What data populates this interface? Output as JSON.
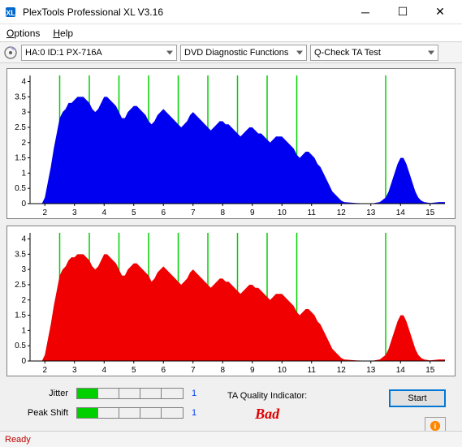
{
  "window": {
    "title": "PlexTools Professional XL V3.16"
  },
  "menu": {
    "options": "Options",
    "help": "Help"
  },
  "toolbar": {
    "drive": "HA:0 ID:1  PX-716A",
    "mode": "DVD Diagnostic Functions",
    "test": "Q-Check TA Test"
  },
  "chart": {
    "xlim": [
      1.5,
      15.5
    ],
    "ylim": [
      0,
      4.2
    ],
    "xticks": [
      2,
      3,
      4,
      5,
      6,
      7,
      8,
      9,
      10,
      11,
      12,
      13,
      14,
      15
    ],
    "yticks": [
      0,
      0.5,
      1,
      1.5,
      2,
      2.5,
      3,
      3.5,
      4
    ],
    "ylabels": [
      "0",
      "0.5",
      "1",
      "1.5",
      "2",
      "2.5",
      "3",
      "3.5",
      "4"
    ],
    "grid_x": [
      2.5,
      3.5,
      4.5,
      5.5,
      6.5,
      7.5,
      8.5,
      9.5,
      10.5,
      13.5
    ],
    "grid_color": "#00d000",
    "bg": "#ffffff",
    "chart1": {
      "color": "#0000f0",
      "data": [
        [
          1.9,
          0
        ],
        [
          2.0,
          0.2
        ],
        [
          2.1,
          0.7
        ],
        [
          2.2,
          1.2
        ],
        [
          2.3,
          1.8
        ],
        [
          2.4,
          2.3
        ],
        [
          2.5,
          2.8
        ],
        [
          2.6,
          3.0
        ],
        [
          2.7,
          3.1
        ],
        [
          2.8,
          3.3
        ],
        [
          2.9,
          3.3
        ],
        [
          3.0,
          3.4
        ],
        [
          3.1,
          3.5
        ],
        [
          3.2,
          3.5
        ],
        [
          3.3,
          3.5
        ],
        [
          3.4,
          3.4
        ],
        [
          3.5,
          3.3
        ],
        [
          3.6,
          3.1
        ],
        [
          3.7,
          3.0
        ],
        [
          3.8,
          3.1
        ],
        [
          3.9,
          3.3
        ],
        [
          4.0,
          3.5
        ],
        [
          4.1,
          3.5
        ],
        [
          4.2,
          3.4
        ],
        [
          4.3,
          3.3
        ],
        [
          4.4,
          3.2
        ],
        [
          4.5,
          3.0
        ],
        [
          4.6,
          2.8
        ],
        [
          4.7,
          2.8
        ],
        [
          4.8,
          3.0
        ],
        [
          4.9,
          3.1
        ],
        [
          5.0,
          3.2
        ],
        [
          5.1,
          3.2
        ],
        [
          5.2,
          3.1
        ],
        [
          5.3,
          3.0
        ],
        [
          5.4,
          2.9
        ],
        [
          5.5,
          2.7
        ],
        [
          5.6,
          2.6
        ],
        [
          5.7,
          2.7
        ],
        [
          5.8,
          2.9
        ],
        [
          5.9,
          3.0
        ],
        [
          6.0,
          3.1
        ],
        [
          6.1,
          3.0
        ],
        [
          6.2,
          2.9
        ],
        [
          6.3,
          2.8
        ],
        [
          6.4,
          2.7
        ],
        [
          6.5,
          2.6
        ],
        [
          6.6,
          2.5
        ],
        [
          6.7,
          2.6
        ],
        [
          6.8,
          2.7
        ],
        [
          6.9,
          2.9
        ],
        [
          7.0,
          3.0
        ],
        [
          7.1,
          2.9
        ],
        [
          7.2,
          2.8
        ],
        [
          7.3,
          2.7
        ],
        [
          7.4,
          2.6
        ],
        [
          7.5,
          2.5
        ],
        [
          7.6,
          2.4
        ],
        [
          7.7,
          2.5
        ],
        [
          7.8,
          2.6
        ],
        [
          7.9,
          2.7
        ],
        [
          8.0,
          2.7
        ],
        [
          8.1,
          2.6
        ],
        [
          8.2,
          2.6
        ],
        [
          8.3,
          2.5
        ],
        [
          8.4,
          2.4
        ],
        [
          8.5,
          2.3
        ],
        [
          8.6,
          2.2
        ],
        [
          8.7,
          2.3
        ],
        [
          8.8,
          2.4
        ],
        [
          8.9,
          2.5
        ],
        [
          9.0,
          2.5
        ],
        [
          9.1,
          2.4
        ],
        [
          9.2,
          2.3
        ],
        [
          9.3,
          2.3
        ],
        [
          9.4,
          2.2
        ],
        [
          9.5,
          2.1
        ],
        [
          9.6,
          2.0
        ],
        [
          9.7,
          2.1
        ],
        [
          9.8,
          2.2
        ],
        [
          9.9,
          2.2
        ],
        [
          10.0,
          2.2
        ],
        [
          10.1,
          2.1
        ],
        [
          10.2,
          2.0
        ],
        [
          10.3,
          1.9
        ],
        [
          10.4,
          1.8
        ],
        [
          10.5,
          1.6
        ],
        [
          10.6,
          1.5
        ],
        [
          10.7,
          1.6
        ],
        [
          10.8,
          1.7
        ],
        [
          10.9,
          1.7
        ],
        [
          11.0,
          1.6
        ],
        [
          11.1,
          1.5
        ],
        [
          11.2,
          1.3
        ],
        [
          11.3,
          1.2
        ],
        [
          11.4,
          1.0
        ],
        [
          11.5,
          0.8
        ],
        [
          11.6,
          0.6
        ],
        [
          11.7,
          0.4
        ],
        [
          11.8,
          0.3
        ],
        [
          11.9,
          0.2
        ],
        [
          12.0,
          0.1
        ],
        [
          12.1,
          0.05
        ],
        [
          12.5,
          0.02
        ],
        [
          13.0,
          0
        ],
        [
          13.3,
          0.05
        ],
        [
          13.5,
          0.2
        ],
        [
          13.6,
          0.4
        ],
        [
          13.7,
          0.7
        ],
        [
          13.8,
          1.0
        ],
        [
          13.9,
          1.3
        ],
        [
          14.0,
          1.5
        ],
        [
          14.1,
          1.5
        ],
        [
          14.2,
          1.3
        ],
        [
          14.3,
          1.0
        ],
        [
          14.4,
          0.7
        ],
        [
          14.5,
          0.4
        ],
        [
          14.6,
          0.2
        ],
        [
          14.7,
          0.1
        ],
        [
          14.8,
          0.05
        ],
        [
          15.0,
          0.02
        ],
        [
          15.3,
          0.05
        ],
        [
          15.5,
          0.05
        ]
      ]
    },
    "chart2": {
      "color": "#f00000",
      "data": [
        [
          1.9,
          0
        ],
        [
          2.0,
          0.2
        ],
        [
          2.1,
          0.7
        ],
        [
          2.2,
          1.2
        ],
        [
          2.3,
          1.8
        ],
        [
          2.4,
          2.3
        ],
        [
          2.5,
          2.8
        ],
        [
          2.6,
          3.0
        ],
        [
          2.7,
          3.1
        ],
        [
          2.8,
          3.3
        ],
        [
          2.9,
          3.4
        ],
        [
          3.0,
          3.4
        ],
        [
          3.1,
          3.5
        ],
        [
          3.2,
          3.5
        ],
        [
          3.3,
          3.5
        ],
        [
          3.4,
          3.4
        ],
        [
          3.5,
          3.3
        ],
        [
          3.6,
          3.1
        ],
        [
          3.7,
          3.0
        ],
        [
          3.8,
          3.1
        ],
        [
          3.9,
          3.3
        ],
        [
          4.0,
          3.5
        ],
        [
          4.1,
          3.5
        ],
        [
          4.2,
          3.4
        ],
        [
          4.3,
          3.3
        ],
        [
          4.4,
          3.2
        ],
        [
          4.5,
          3.0
        ],
        [
          4.6,
          2.8
        ],
        [
          4.7,
          2.8
        ],
        [
          4.8,
          3.0
        ],
        [
          4.9,
          3.1
        ],
        [
          5.0,
          3.2
        ],
        [
          5.1,
          3.2
        ],
        [
          5.2,
          3.1
        ],
        [
          5.3,
          3.0
        ],
        [
          5.4,
          2.9
        ],
        [
          5.5,
          2.8
        ],
        [
          5.6,
          2.6
        ],
        [
          5.7,
          2.7
        ],
        [
          5.8,
          2.9
        ],
        [
          5.9,
          3.0
        ],
        [
          6.0,
          3.1
        ],
        [
          6.1,
          3.0
        ],
        [
          6.2,
          2.9
        ],
        [
          6.3,
          2.8
        ],
        [
          6.4,
          2.7
        ],
        [
          6.5,
          2.6
        ],
        [
          6.6,
          2.5
        ],
        [
          6.7,
          2.6
        ],
        [
          6.8,
          2.7
        ],
        [
          6.9,
          2.9
        ],
        [
          7.0,
          3.0
        ],
        [
          7.1,
          2.9
        ],
        [
          7.2,
          2.8
        ],
        [
          7.3,
          2.7
        ],
        [
          7.4,
          2.6
        ],
        [
          7.5,
          2.5
        ],
        [
          7.6,
          2.4
        ],
        [
          7.7,
          2.5
        ],
        [
          7.8,
          2.6
        ],
        [
          7.9,
          2.7
        ],
        [
          8.0,
          2.7
        ],
        [
          8.1,
          2.6
        ],
        [
          8.2,
          2.6
        ],
        [
          8.3,
          2.5
        ],
        [
          8.4,
          2.4
        ],
        [
          8.5,
          2.3
        ],
        [
          8.6,
          2.2
        ],
        [
          8.7,
          2.3
        ],
        [
          8.8,
          2.4
        ],
        [
          8.9,
          2.5
        ],
        [
          9.0,
          2.5
        ],
        [
          9.1,
          2.4
        ],
        [
          9.2,
          2.4
        ],
        [
          9.3,
          2.3
        ],
        [
          9.4,
          2.2
        ],
        [
          9.5,
          2.1
        ],
        [
          9.6,
          2.0
        ],
        [
          9.7,
          2.1
        ],
        [
          9.8,
          2.2
        ],
        [
          9.9,
          2.2
        ],
        [
          10.0,
          2.2
        ],
        [
          10.1,
          2.1
        ],
        [
          10.2,
          2.0
        ],
        [
          10.3,
          1.9
        ],
        [
          10.4,
          1.8
        ],
        [
          10.5,
          1.6
        ],
        [
          10.6,
          1.5
        ],
        [
          10.7,
          1.6
        ],
        [
          10.8,
          1.7
        ],
        [
          10.9,
          1.7
        ],
        [
          11.0,
          1.6
        ],
        [
          11.1,
          1.5
        ],
        [
          11.2,
          1.3
        ],
        [
          11.3,
          1.2
        ],
        [
          11.4,
          1.0
        ],
        [
          11.5,
          0.8
        ],
        [
          11.6,
          0.6
        ],
        [
          11.7,
          0.4
        ],
        [
          11.8,
          0.3
        ],
        [
          11.9,
          0.2
        ],
        [
          12.0,
          0.1
        ],
        [
          12.1,
          0.05
        ],
        [
          12.5,
          0.02
        ],
        [
          13.0,
          0
        ],
        [
          13.3,
          0.05
        ],
        [
          13.5,
          0.2
        ],
        [
          13.6,
          0.4
        ],
        [
          13.7,
          0.7
        ],
        [
          13.8,
          1.0
        ],
        [
          13.9,
          1.3
        ],
        [
          14.0,
          1.5
        ],
        [
          14.1,
          1.5
        ],
        [
          14.2,
          1.3
        ],
        [
          14.3,
          1.0
        ],
        [
          14.4,
          0.7
        ],
        [
          14.5,
          0.4
        ],
        [
          14.6,
          0.2
        ],
        [
          14.7,
          0.1
        ],
        [
          14.8,
          0.05
        ],
        [
          15.0,
          0.02
        ],
        [
          15.3,
          0.05
        ],
        [
          15.5,
          0.05
        ]
      ]
    }
  },
  "meters": {
    "jitter": {
      "label": "Jitter",
      "value": "1",
      "fill": 1,
      "max": 5
    },
    "peakshift": {
      "label": "Peak Shift",
      "value": "1",
      "fill": 1,
      "max": 5
    }
  },
  "quality": {
    "label": "TA Quality Indicator:",
    "value": "Bad",
    "color": "#e00000"
  },
  "buttons": {
    "start": "Start"
  },
  "status": "Ready"
}
